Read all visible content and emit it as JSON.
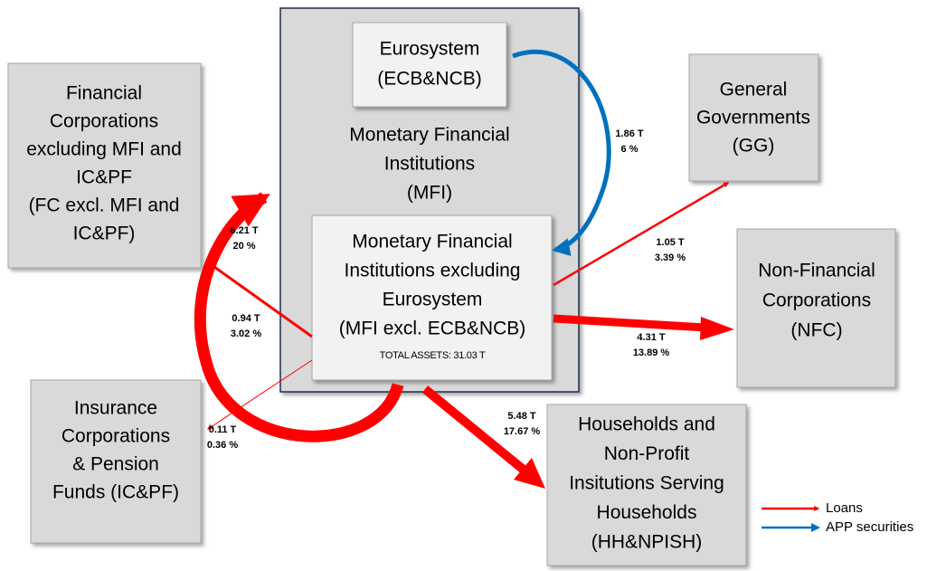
{
  "nodes": [
    {
      "lines": [
        "Financial",
        "Corporations",
        "excluding MFI and",
        "IC&PF",
        "(FC excl. MFI and",
        "IC&PF)"
      ]
    },
    {
      "lines": [
        "Eurosystem",
        "(ECB&NCB)"
      ]
    },
    {
      "lines": [
        "Monetary Financial",
        "Institutions",
        "(MFI)"
      ]
    },
    {
      "lines": [
        "Monetary Financial",
        "Institutions  excluding",
        "Eurosystem",
        "(MFI excl. ECB&NCB)"
      ],
      "note": "TOTAL ASSETS: 31.03 T"
    },
    {
      "lines": [
        "General",
        "Governments",
        "(GG)"
      ]
    },
    {
      "lines": [
        "Non-Financial",
        "Corporations",
        "(NFC)"
      ]
    },
    {
      "lines": [
        "Insurance",
        "Corporations",
        "& Pension",
        "Funds (IC&PF)"
      ]
    },
    {
      "lines": [
        "Households and",
        "Non-Profit",
        "Insitutions Serving",
        "Households",
        "(HH&NPISH)"
      ]
    }
  ],
  "edges": [
    {
      "amount": "1.86 T",
      "share": "6 %",
      "kind": "APP securities"
    },
    {
      "amount": "6.21 T",
      "share": "20 %",
      "kind": "Loans"
    },
    {
      "amount": "0.94 T",
      "share": "3.02 %",
      "kind": "Loans"
    },
    {
      "amount": "0.11 T",
      "share": "0.36 %",
      "kind": "Loans"
    },
    {
      "amount": "1.05 T",
      "share": "3.39 %",
      "kind": "Loans"
    },
    {
      "amount": "4.31 T",
      "share": "13.89 %",
      "kind": "Loans"
    },
    {
      "amount": "5.48 T",
      "share": "17.67 %",
      "kind": "Loans"
    }
  ],
  "legend": [
    {
      "label": "Loans",
      "color": "#ff0000"
    },
    {
      "label": "APP securities",
      "color": "#0070c0"
    }
  ]
}
